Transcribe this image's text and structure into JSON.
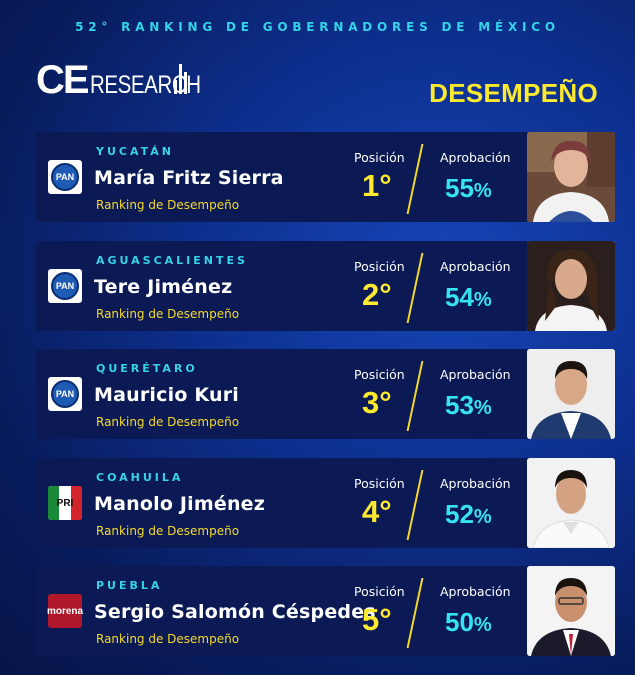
{
  "header": {
    "title": "52° RANKING DE GOBERNADORES DE MÉXICO",
    "logo_ce": "CE",
    "logo_research": "RESEARCH",
    "section": "DESEMPEÑO"
  },
  "labels": {
    "position": "Posición",
    "approval": "Aprobación",
    "ranking": "Ranking de Desempeño"
  },
  "colors": {
    "accent_cyan": "#36d3e6",
    "accent_yellow": "#fde92e",
    "card_bg": "#0b1a55"
  },
  "governors": [
    {
      "state": "YUCATÁN",
      "name": "María Fritz Sierra",
      "party": "PAN",
      "position": "1°",
      "approval": "55",
      "pct": "%"
    },
    {
      "state": "AGUASCALIENTES",
      "name": "Tere Jiménez",
      "party": "PAN",
      "position": "2°",
      "approval": "54",
      "pct": "%"
    },
    {
      "state": "QUERÉTARO",
      "name": "Mauricio Kuri",
      "party": "PAN",
      "position": "3°",
      "approval": "53",
      "pct": "%"
    },
    {
      "state": "COAHUILA",
      "name": "Manolo Jiménez",
      "party": "PRI",
      "position": "4°",
      "approval": "52",
      "pct": "%"
    },
    {
      "state": "PUEBLA",
      "name": "Sergio Salomón Céspedes",
      "party": "morena",
      "position": "5°",
      "approval": "50",
      "pct": "%"
    }
  ]
}
